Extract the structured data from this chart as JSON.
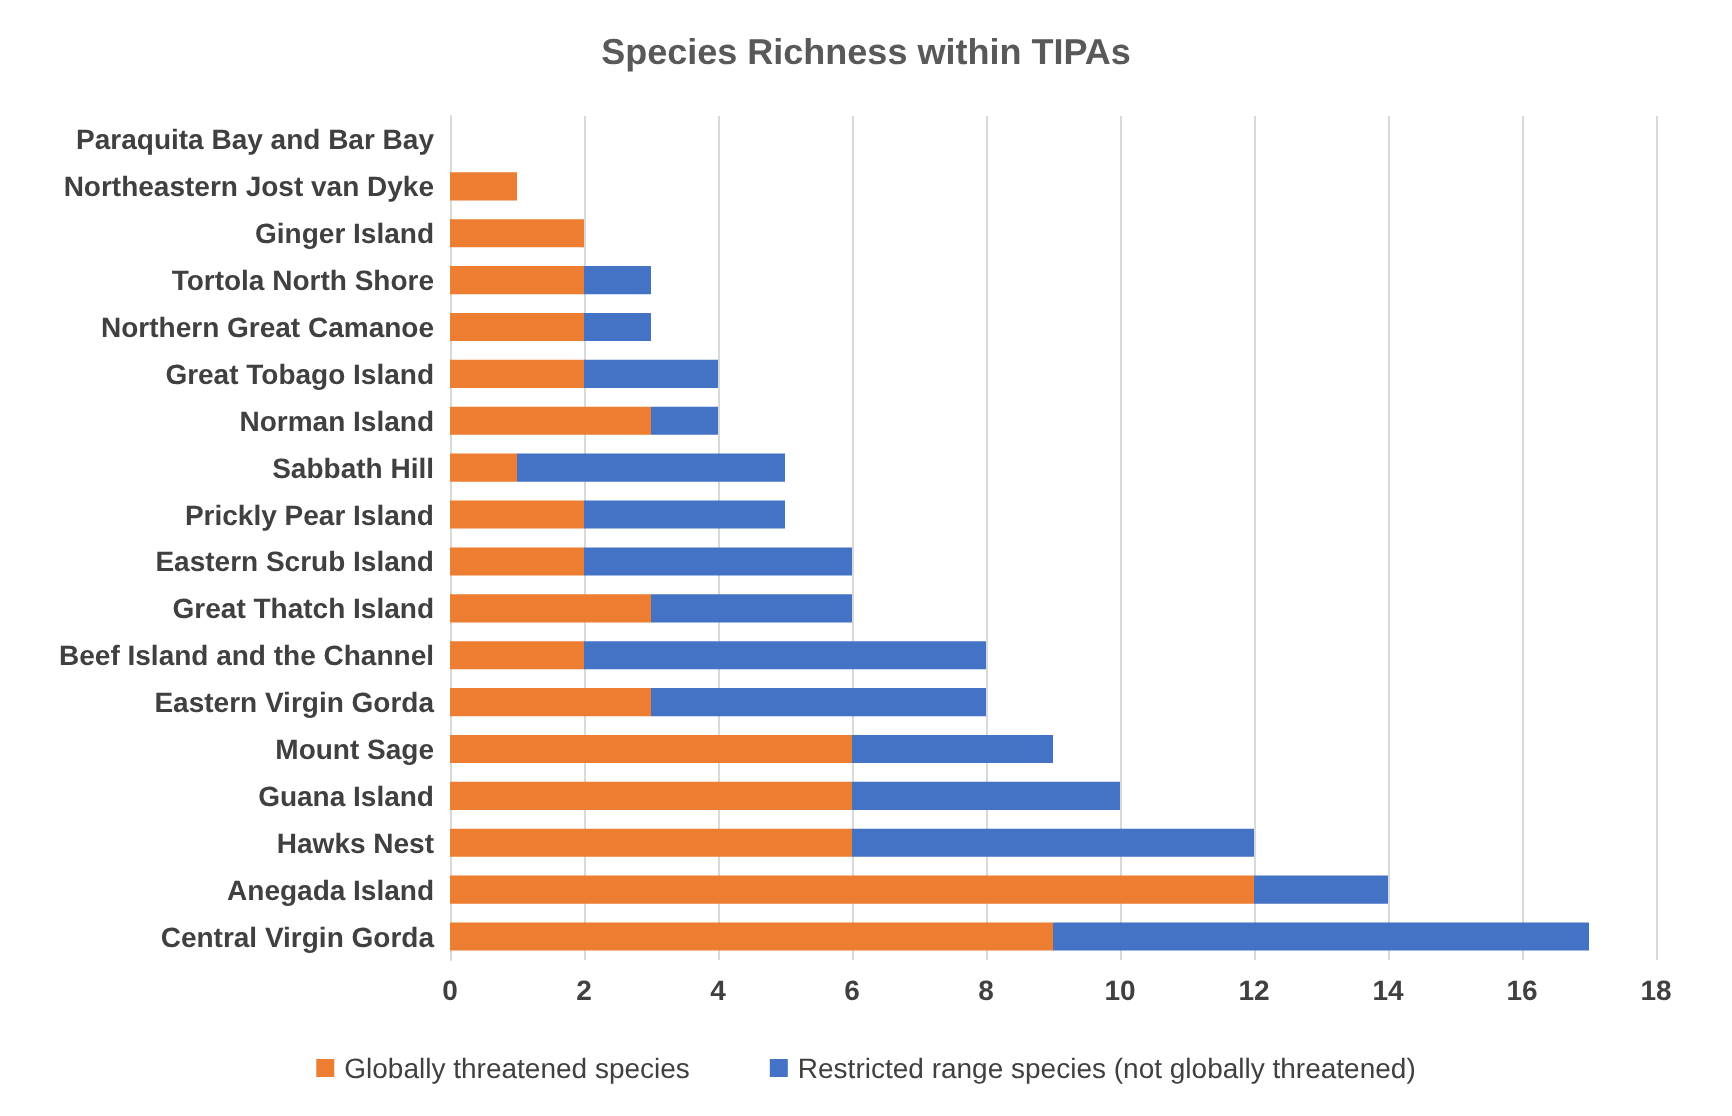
{
  "chart_data": {
    "type": "bar",
    "orientation": "horizontal",
    "stacked": true,
    "title": "Species Richness within TIPAs",
    "categories": [
      "Paraquita Bay and Bar Bay",
      "Northeastern Jost van Dyke",
      "Ginger Island",
      "Tortola North Shore",
      "Northern Great Camanoe",
      "Great Tobago Island",
      "Norman Island",
      "Sabbath Hill",
      "Prickly Pear Island",
      "Eastern Scrub Island",
      "Great Thatch Island",
      "Beef Island and the Channel",
      "Eastern Virgin Gorda",
      "Mount Sage",
      "Guana Island",
      "Hawks Nest",
      "Anegada Island",
      "Central Virgin Gorda"
    ],
    "series": [
      {
        "name": "Globally threatened species",
        "color": "#ed7d31",
        "values": [
          0,
          1,
          2,
          2,
          2,
          2,
          3,
          1,
          2,
          2,
          3,
          2,
          3,
          6,
          6,
          6,
          12,
          9
        ]
      },
      {
        "name": "Restricted range species (not globally threatened)",
        "color": "#4472c4",
        "values": [
          0,
          0,
          0,
          1,
          1,
          2,
          1,
          4,
          3,
          4,
          3,
          6,
          5,
          3,
          4,
          6,
          2,
          8
        ]
      }
    ],
    "xlim": [
      0,
      18
    ],
    "xticks": [
      0,
      2,
      4,
      6,
      8,
      10,
      12,
      14,
      16,
      18
    ],
    "grid": "x",
    "legend": "bottom"
  }
}
